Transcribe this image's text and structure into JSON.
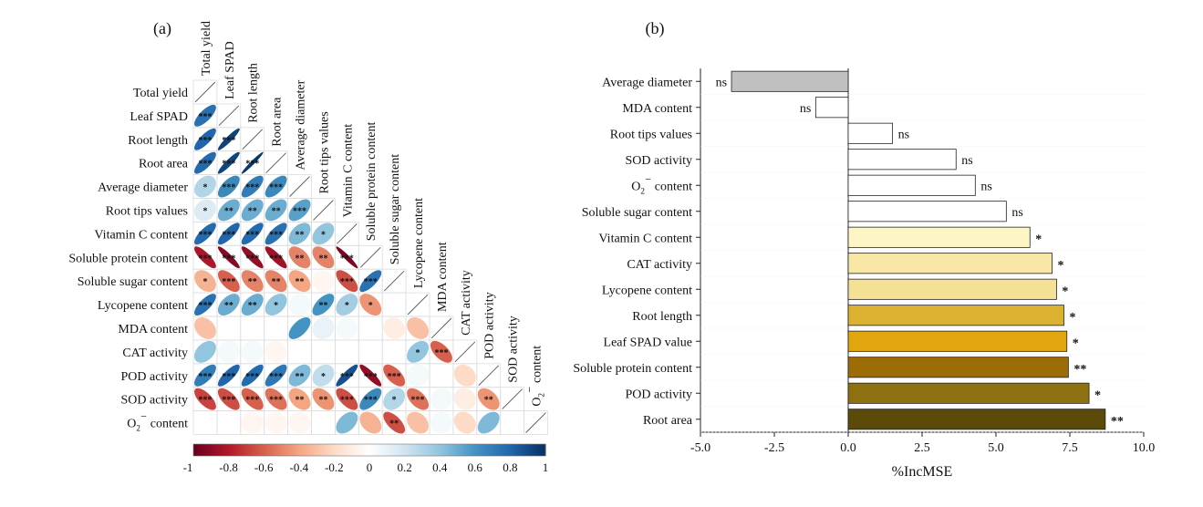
{
  "panel_a_label": "(a)",
  "panel_b_label": "(b)",
  "chart_data": [
    {
      "type": "heatmap",
      "variables": [
        "Total yield",
        "Leaf SPAD",
        "Root length",
        "Root area",
        "Average diameter",
        "Root tips values",
        "Vitamin C content",
        "Soluble protein content",
        "Soluble sugar content",
        "Lycopene content",
        "MDA content",
        "CAT activity",
        "POD activity",
        "SOD activity",
        "O2⁻ content"
      ],
      "row_labels": [
        "Total yield",
        "Leaf SPAD",
        "Root length",
        "Root area",
        "Average diameter",
        "Root tips values",
        "Vitamin C content",
        "Soluble protein content",
        "Soluble sugar content",
        "Lycopene content",
        "MDA content",
        "CAT activity",
        "POD activity",
        "SOD activity",
        "O2⁻ content"
      ],
      "cells": [
        {
          "r": 1,
          "c": 0,
          "v": 0.75,
          "sig": "***"
        },
        {
          "r": 2,
          "c": 0,
          "v": 0.8,
          "sig": "***"
        },
        {
          "r": 2,
          "c": 1,
          "v": 0.93,
          "sig": "***"
        },
        {
          "r": 3,
          "c": 0,
          "v": 0.78,
          "sig": "***"
        },
        {
          "r": 3,
          "c": 1,
          "v": 0.92,
          "sig": "***"
        },
        {
          "r": 3,
          "c": 2,
          "v": 0.97,
          "sig": "***"
        },
        {
          "r": 4,
          "c": 0,
          "v": 0.3,
          "sig": "*"
        },
        {
          "r": 4,
          "c": 1,
          "v": 0.65,
          "sig": "***"
        },
        {
          "r": 4,
          "c": 2,
          "v": 0.7,
          "sig": "***"
        },
        {
          "r": 4,
          "c": 3,
          "v": 0.65,
          "sig": "***"
        },
        {
          "r": 5,
          "c": 0,
          "v": 0.15,
          "sig": "*"
        },
        {
          "r": 5,
          "c": 1,
          "v": 0.5,
          "sig": "**"
        },
        {
          "r": 5,
          "c": 2,
          "v": 0.5,
          "sig": "**"
        },
        {
          "r": 5,
          "c": 3,
          "v": 0.5,
          "sig": "**"
        },
        {
          "r": 5,
          "c": 4,
          "v": 0.55,
          "sig": "***"
        },
        {
          "r": 6,
          "c": 0,
          "v": 0.78,
          "sig": "***"
        },
        {
          "r": 6,
          "c": 1,
          "v": 0.8,
          "sig": "***"
        },
        {
          "r": 6,
          "c": 2,
          "v": 0.78,
          "sig": "***"
        },
        {
          "r": 6,
          "c": 3,
          "v": 0.75,
          "sig": "***"
        },
        {
          "r": 6,
          "c": 4,
          "v": 0.45,
          "sig": "**"
        },
        {
          "r": 6,
          "c": 5,
          "v": 0.4,
          "sig": "*"
        },
        {
          "r": 7,
          "c": 0,
          "v": -0.82,
          "sig": "***"
        },
        {
          "r": 7,
          "c": 1,
          "v": -0.92,
          "sig": "***"
        },
        {
          "r": 7,
          "c": 2,
          "v": -0.88,
          "sig": "***"
        },
        {
          "r": 7,
          "c": 3,
          "v": -0.85,
          "sig": "***"
        },
        {
          "r": 7,
          "c": 4,
          "v": -0.5,
          "sig": "**"
        },
        {
          "r": 7,
          "c": 5,
          "v": -0.5,
          "sig": "**"
        },
        {
          "r": 7,
          "c": 6,
          "v": -0.95,
          "sig": "***"
        },
        {
          "r": 8,
          "c": 0,
          "v": -0.35,
          "sig": "*"
        },
        {
          "r": 8,
          "c": 1,
          "v": -0.6,
          "sig": "***"
        },
        {
          "r": 8,
          "c": 2,
          "v": -0.5,
          "sig": "**"
        },
        {
          "r": 8,
          "c": 3,
          "v": -0.5,
          "sig": "**"
        },
        {
          "r": 8,
          "c": 4,
          "v": -0.4,
          "sig": "**"
        },
        {
          "r": 8,
          "c": 5,
          "v": -0.05,
          "sig": ""
        },
        {
          "r": 8,
          "c": 6,
          "v": -0.65,
          "sig": "***"
        },
        {
          "r": 8,
          "c": 7,
          "v": 0.75,
          "sig": "***"
        },
        {
          "r": 9,
          "c": 0,
          "v": 0.75,
          "sig": "***"
        },
        {
          "r": 9,
          "c": 1,
          "v": 0.5,
          "sig": "**"
        },
        {
          "r": 9,
          "c": 2,
          "v": 0.5,
          "sig": "**"
        },
        {
          "r": 9,
          "c": 3,
          "v": 0.4,
          "sig": "*"
        },
        {
          "r": 9,
          "c": 4,
          "v": 0.05,
          "sig": ""
        },
        {
          "r": 9,
          "c": 5,
          "v": 0.6,
          "sig": "**"
        },
        {
          "r": 9,
          "c": 6,
          "v": 0.35,
          "sig": "*"
        },
        {
          "r": 9,
          "c": 7,
          "v": -0.45,
          "sig": "*"
        },
        {
          "r": 9,
          "c": 8,
          "v": 0.0,
          "sig": ""
        },
        {
          "r": 10,
          "c": 0,
          "v": -0.3,
          "sig": ""
        },
        {
          "r": 10,
          "c": 1,
          "v": 0.0,
          "sig": ""
        },
        {
          "r": 10,
          "c": 2,
          "v": 0.0,
          "sig": ""
        },
        {
          "r": 10,
          "c": 3,
          "v": 0.0,
          "sig": ""
        },
        {
          "r": 10,
          "c": 4,
          "v": 0.6,
          "sig": ""
        },
        {
          "r": 10,
          "c": 5,
          "v": 0.1,
          "sig": ""
        },
        {
          "r": 10,
          "c": 6,
          "v": 0.05,
          "sig": ""
        },
        {
          "r": 10,
          "c": 7,
          "v": 0.0,
          "sig": ""
        },
        {
          "r": 10,
          "c": 8,
          "v": -0.1,
          "sig": ""
        },
        {
          "r": 10,
          "c": 9,
          "v": -0.3,
          "sig": ""
        },
        {
          "r": 11,
          "c": 0,
          "v": 0.4,
          "sig": ""
        },
        {
          "r": 11,
          "c": 1,
          "v": 0.05,
          "sig": ""
        },
        {
          "r": 11,
          "c": 2,
          "v": 0.05,
          "sig": ""
        },
        {
          "r": 11,
          "c": 3,
          "v": -0.05,
          "sig": ""
        },
        {
          "r": 11,
          "c": 4,
          "v": 0.0,
          "sig": ""
        },
        {
          "r": 11,
          "c": 5,
          "v": 0.0,
          "sig": ""
        },
        {
          "r": 11,
          "c": 6,
          "v": 0.0,
          "sig": ""
        },
        {
          "r": 11,
          "c": 7,
          "v": 0.0,
          "sig": ""
        },
        {
          "r": 11,
          "c": 8,
          "v": 0.0,
          "sig": ""
        },
        {
          "r": 11,
          "c": 9,
          "v": 0.4,
          "sig": "*"
        },
        {
          "r": 11,
          "c": 10,
          "v": -0.6,
          "sig": "***"
        },
        {
          "r": 12,
          "c": 0,
          "v": 0.7,
          "sig": "***"
        },
        {
          "r": 12,
          "c": 1,
          "v": 0.8,
          "sig": "***"
        },
        {
          "r": 12,
          "c": 2,
          "v": 0.78,
          "sig": "***"
        },
        {
          "r": 12,
          "c": 3,
          "v": 0.72,
          "sig": "***"
        },
        {
          "r": 12,
          "c": 4,
          "v": 0.45,
          "sig": "**"
        },
        {
          "r": 12,
          "c": 5,
          "v": 0.25,
          "sig": "*"
        },
        {
          "r": 12,
          "c": 6,
          "v": 0.88,
          "sig": "***"
        },
        {
          "r": 12,
          "c": 7,
          "v": -0.88,
          "sig": "***"
        },
        {
          "r": 12,
          "c": 8,
          "v": -0.6,
          "sig": "***"
        },
        {
          "r": 12,
          "c": 9,
          "v": 0.05,
          "sig": ""
        },
        {
          "r": 12,
          "c": 10,
          "v": 0.0,
          "sig": ""
        },
        {
          "r": 12,
          "c": 11,
          "v": -0.2,
          "sig": ""
        },
        {
          "r": 13,
          "c": 0,
          "v": -0.68,
          "sig": "***"
        },
        {
          "r": 13,
          "c": 1,
          "v": -0.65,
          "sig": "***"
        },
        {
          "r": 13,
          "c": 2,
          "v": -0.6,
          "sig": "***"
        },
        {
          "r": 13,
          "c": 3,
          "v": -0.55,
          "sig": "***"
        },
        {
          "r": 13,
          "c": 4,
          "v": -0.4,
          "sig": "**"
        },
        {
          "r": 13,
          "c": 5,
          "v": -0.45,
          "sig": "**"
        },
        {
          "r": 13,
          "c": 6,
          "v": -0.65,
          "sig": "***"
        },
        {
          "r": 13,
          "c": 7,
          "v": 0.65,
          "sig": "***"
        },
        {
          "r": 13,
          "c": 8,
          "v": 0.3,
          "sig": "*"
        },
        {
          "r": 13,
          "c": 9,
          "v": -0.55,
          "sig": "***"
        },
        {
          "r": 13,
          "c": 10,
          "v": 0.05,
          "sig": ""
        },
        {
          "r": 13,
          "c": 11,
          "v": -0.1,
          "sig": ""
        },
        {
          "r": 13,
          "c": 12,
          "v": -0.45,
          "sig": "**"
        },
        {
          "r": 14,
          "c": 0,
          "v": 0.0,
          "sig": ""
        },
        {
          "r": 14,
          "c": 1,
          "v": 0.0,
          "sig": ""
        },
        {
          "r": 14,
          "c": 2,
          "v": -0.05,
          "sig": ""
        },
        {
          "r": 14,
          "c": 3,
          "v": -0.05,
          "sig": ""
        },
        {
          "r": 14,
          "c": 4,
          "v": -0.05,
          "sig": ""
        },
        {
          "r": 14,
          "c": 5,
          "v": 0.0,
          "sig": ""
        },
        {
          "r": 14,
          "c": 6,
          "v": 0.45,
          "sig": ""
        },
        {
          "r": 14,
          "c": 7,
          "v": -0.35,
          "sig": ""
        },
        {
          "r": 14,
          "c": 8,
          "v": -0.65,
          "sig": "**"
        },
        {
          "r": 14,
          "c": 9,
          "v": -0.3,
          "sig": ""
        },
        {
          "r": 14,
          "c": 10,
          "v": 0.05,
          "sig": ""
        },
        {
          "r": 14,
          "c": 11,
          "v": -0.2,
          "sig": ""
        },
        {
          "r": 14,
          "c": 12,
          "v": 0.45,
          "sig": ""
        },
        {
          "r": 14,
          "c": 13,
          "v": 0.0,
          "sig": ""
        }
      ],
      "colorbar": {
        "range": [
          -1,
          1
        ],
        "tick_labels": [
          "-1",
          "-0.8",
          "-0.6",
          "-0.4",
          "-0.2",
          "0",
          "0.2",
          "0.4",
          "0.6",
          "0.8",
          "1"
        ],
        "colors": [
          "#67001f",
          "#b2182b",
          "#d6604d",
          "#f4a582",
          "#fddbc7",
          "#ffffff",
          "#d1e5f0",
          "#92c5de",
          "#4393c3",
          "#2166ac",
          "#053061"
        ]
      }
    },
    {
      "type": "bar",
      "orientation": "horizontal",
      "categories": [
        "Average diameter",
        "MDA content",
        "Root tips values",
        "SOD activity",
        "O2⁻ content",
        "Soluble sugar content",
        "Vitamin C content",
        "CAT activity",
        "Lycopene content",
        "Root length",
        "Leaf SPAD value",
        "Soluble protein content",
        "POD activity",
        "Root area"
      ],
      "values": [
        -3.95,
        -1.1,
        1.5,
        3.65,
        4.3,
        5.35,
        6.15,
        6.9,
        7.05,
        7.3,
        7.4,
        7.45,
        8.15,
        8.7
      ],
      "significance": [
        "ns",
        "ns",
        "ns",
        "ns",
        "ns",
        "ns",
        "*",
        "*",
        "*",
        "*",
        "*",
        "**",
        "*",
        "**"
      ],
      "colors": [
        "#c0c0c0",
        "#ffffff",
        "#ffffff",
        "#ffffff",
        "#ffffff",
        "#ffffff",
        "#fdf5c6",
        "#f8e7a6",
        "#f5e196",
        "#dbb230",
        "#e2a70f",
        "#9c6c06",
        "#8e7010",
        "#5c4a08"
      ],
      "xlabel": "%IncMSE",
      "xlim": [
        -5.0,
        10.0
      ],
      "xticks": [
        "-5.0",
        "-2.5",
        "0.0",
        "2.5",
        "5.0",
        "7.5",
        "10.0"
      ]
    }
  ]
}
